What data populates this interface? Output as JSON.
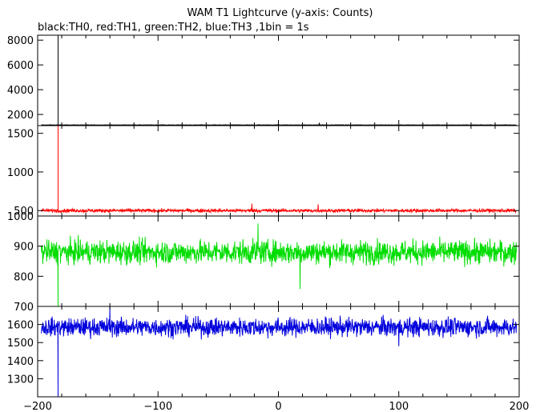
{
  "title": "WAM T1 Lightcurve (y-axis: Counts)",
  "subtitle": "black:TH0, red:TH1, green:TH2, blue:TH3 ,1bin = 1s",
  "chart_data": {
    "type": "line",
    "x_range": [
      -200,
      200
    ],
    "x_ticks": [
      -200,
      -100,
      0,
      100,
      200
    ],
    "x_tick_labels": [
      "−200",
      "−100",
      "0",
      "100",
      "200"
    ],
    "grid": false,
    "spike_x": -183,
    "series": [
      {
        "name": "TH0",
        "color": "#000000",
        "ylim": [
          1100,
          8400
        ],
        "yticks": [
          2000,
          4000,
          6000,
          8000
        ],
        "baseline": 1150,
        "noise": 18,
        "spike_min": 1150,
        "spike_max": 8400,
        "features": [
          {
            "x": 0,
            "y": 1230
          },
          {
            "x": 34,
            "y": 1330
          }
        ]
      },
      {
        "name": "TH1",
        "color": "#ff0000",
        "ylim": [
          430,
          1600
        ],
        "yticks": [
          500,
          1000,
          1500
        ],
        "baseline": 500,
        "noise": 22,
        "spike_min": 470,
        "spike_max": 1600,
        "features": [
          {
            "x": -22,
            "y": 590
          },
          {
            "x": 33,
            "y": 580
          }
        ]
      },
      {
        "name": "TH2",
        "color": "#00dd00",
        "ylim": [
          700,
          1000
        ],
        "yticks": [
          700,
          800,
          900,
          1000
        ],
        "baseline": 880,
        "noise": 38,
        "spike_min": 700,
        "spike_max": 880,
        "features": [
          {
            "x": -17,
            "y": 975
          },
          {
            "x": 18,
            "y": 758
          }
        ]
      },
      {
        "name": "TH3",
        "color": "#0000dd",
        "ylim": [
          1200,
          1700
        ],
        "yticks": [
          1300,
          1400,
          1500,
          1600
        ],
        "baseline": 1585,
        "noise": 50,
        "spike_min": 1200,
        "spike_max": 1560,
        "features": [
          {
            "x": 100,
            "y": 1480
          },
          {
            "x": -140,
            "y": 1700
          }
        ]
      }
    ]
  }
}
